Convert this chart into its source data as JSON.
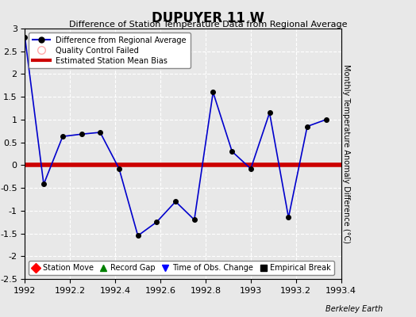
{
  "title": "DUPUYER 11 W",
  "subtitle": "Difference of Station Temperature Data from Regional Average",
  "ylabel_right": "Monthly Temperature Anomaly Difference (°C)",
  "background_color": "#e8e8e8",
  "plot_bg_color": "#e8e8e8",
  "xlim": [
    1992.0,
    1993.4
  ],
  "ylim": [
    -2.5,
    3.0
  ],
  "xticks": [
    1992.0,
    1992.2,
    1992.4,
    1992.6,
    1992.8,
    1993.0,
    1993.2,
    1993.4
  ],
  "yticks": [
    -2.5,
    -2.0,
    -1.5,
    -1.0,
    -0.5,
    0.0,
    0.5,
    1.0,
    1.5,
    2.0,
    2.5,
    3.0
  ],
  "ytick_labels": [
    "-2.5",
    "-2",
    "-1.5",
    "-1",
    "-0.5",
    "0",
    "0.5",
    "1",
    "1.5",
    "2",
    "2.5",
    "3"
  ],
  "data_x": [
    1992.0,
    1992.083,
    1992.167,
    1992.25,
    1992.333,
    1992.417,
    1992.5,
    1992.583,
    1992.667,
    1992.75,
    1992.833,
    1992.917,
    1993.0,
    1993.083,
    1993.167,
    1993.25,
    1993.333
  ],
  "data_y": [
    2.8,
    -0.42,
    0.63,
    0.68,
    0.72,
    -0.08,
    -1.55,
    -1.25,
    -0.8,
    -1.2,
    1.6,
    0.3,
    -0.08,
    1.15,
    -1.15,
    0.85,
    1.0
  ],
  "bias_y": 0.0,
  "line_color": "#0000cc",
  "marker_color": "#000000",
  "bias_color": "#cc0000",
  "bias_linewidth": 4,
  "data_linewidth": 1.2,
  "marker_size": 4,
  "watermark": "Berkeley Earth",
  "legend1_labels": [
    "Difference from Regional Average",
    "Quality Control Failed",
    "Estimated Station Mean Bias"
  ],
  "legend2_labels": [
    "Station Move",
    "Record Gap",
    "Time of Obs. Change",
    "Empirical Break"
  ]
}
